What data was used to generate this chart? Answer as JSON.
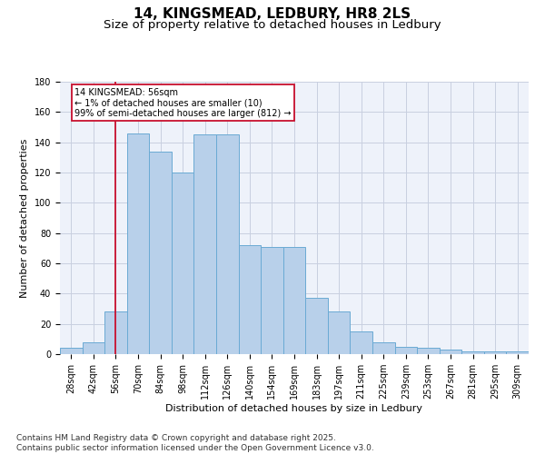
{
  "title1": "14, KINGSMEAD, LEDBURY, HR8 2LS",
  "title2": "Size of property relative to detached houses in Ledbury",
  "xlabel": "Distribution of detached houses by size in Ledbury",
  "ylabel": "Number of detached properties",
  "categories": [
    "28sqm",
    "42sqm",
    "56sqm",
    "70sqm",
    "84sqm",
    "98sqm",
    "112sqm",
    "126sqm",
    "140sqm",
    "154sqm",
    "169sqm",
    "183sqm",
    "197sqm",
    "211sqm",
    "225sqm",
    "239sqm",
    "253sqm",
    "267sqm",
    "281sqm",
    "295sqm",
    "309sqm"
  ],
  "values": [
    4,
    8,
    28,
    146,
    134,
    120,
    145,
    145,
    72,
    71,
    71,
    37,
    28,
    15,
    8,
    5,
    4,
    3,
    2,
    2,
    2
  ],
  "bar_color": "#b8d0ea",
  "bar_edge_color": "#6aaad4",
  "highlight_color": "#c8102e",
  "vline_x_index": 2,
  "annotation_text": "14 KINGSMEAD: 56sqm\n← 1% of detached houses are smaller (10)\n99% of semi-detached houses are larger (812) →",
  "annotation_box_color": "#c8102e",
  "ylim": [
    0,
    180
  ],
  "yticks": [
    0,
    20,
    40,
    60,
    80,
    100,
    120,
    140,
    160,
    180
  ],
  "background_color": "#eef2fa",
  "grid_color": "#c8cfe0",
  "footer": "Contains HM Land Registry data © Crown copyright and database right 2025.\nContains public sector information licensed under the Open Government Licence v3.0.",
  "title_fontsize": 11,
  "subtitle_fontsize": 9.5,
  "axis_label_fontsize": 8,
  "tick_fontsize": 7,
  "annotation_fontsize": 7,
  "footer_fontsize": 6.5
}
